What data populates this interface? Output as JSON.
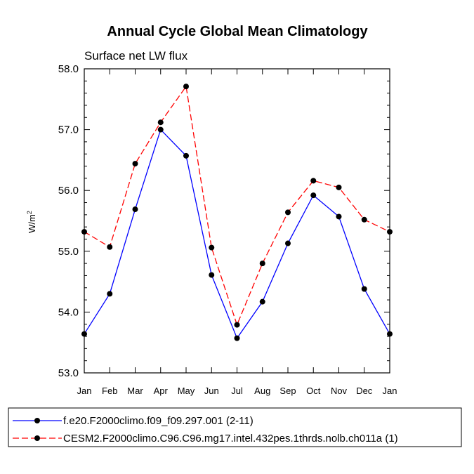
{
  "chart_data": {
    "type": "line",
    "title": "Annual Cycle Global Mean Climatology",
    "subtitle": "Surface net LW flux",
    "ylabel_base": "W/m",
    "ylabel_sup": "2",
    "xlabel": "",
    "ylim": [
      53.0,
      58.0
    ],
    "yticks": [
      "53.0",
      "54.0",
      "55.0",
      "56.0",
      "57.0",
      "58.0"
    ],
    "categories": [
      "Jan",
      "Feb",
      "Mar",
      "Apr",
      "May",
      "Jun",
      "Jul",
      "Aug",
      "Sep",
      "Oct",
      "Nov",
      "Dec",
      "Jan"
    ],
    "series": [
      {
        "name": "f.e20.F2000climo.f09_f09.297.001 (2-11)",
        "color": "#0000ff",
        "dash": "solid",
        "values": [
          53.64,
          54.3,
          55.69,
          57.0,
          56.57,
          54.61,
          53.57,
          54.17,
          55.13,
          55.92,
          55.57,
          54.38,
          53.64
        ]
      },
      {
        "name": "CESM2.F2000climo.C96.C96.mg17.intel.432pes.1thrds.nolb.ch011a (1)",
        "color": "#ff0000",
        "dash": "dashed",
        "values": [
          55.32,
          55.07,
          56.44,
          57.12,
          57.71,
          55.06,
          53.79,
          54.8,
          55.64,
          56.16,
          56.05,
          55.52,
          55.32
        ]
      }
    ],
    "legend_position": "bottom"
  }
}
